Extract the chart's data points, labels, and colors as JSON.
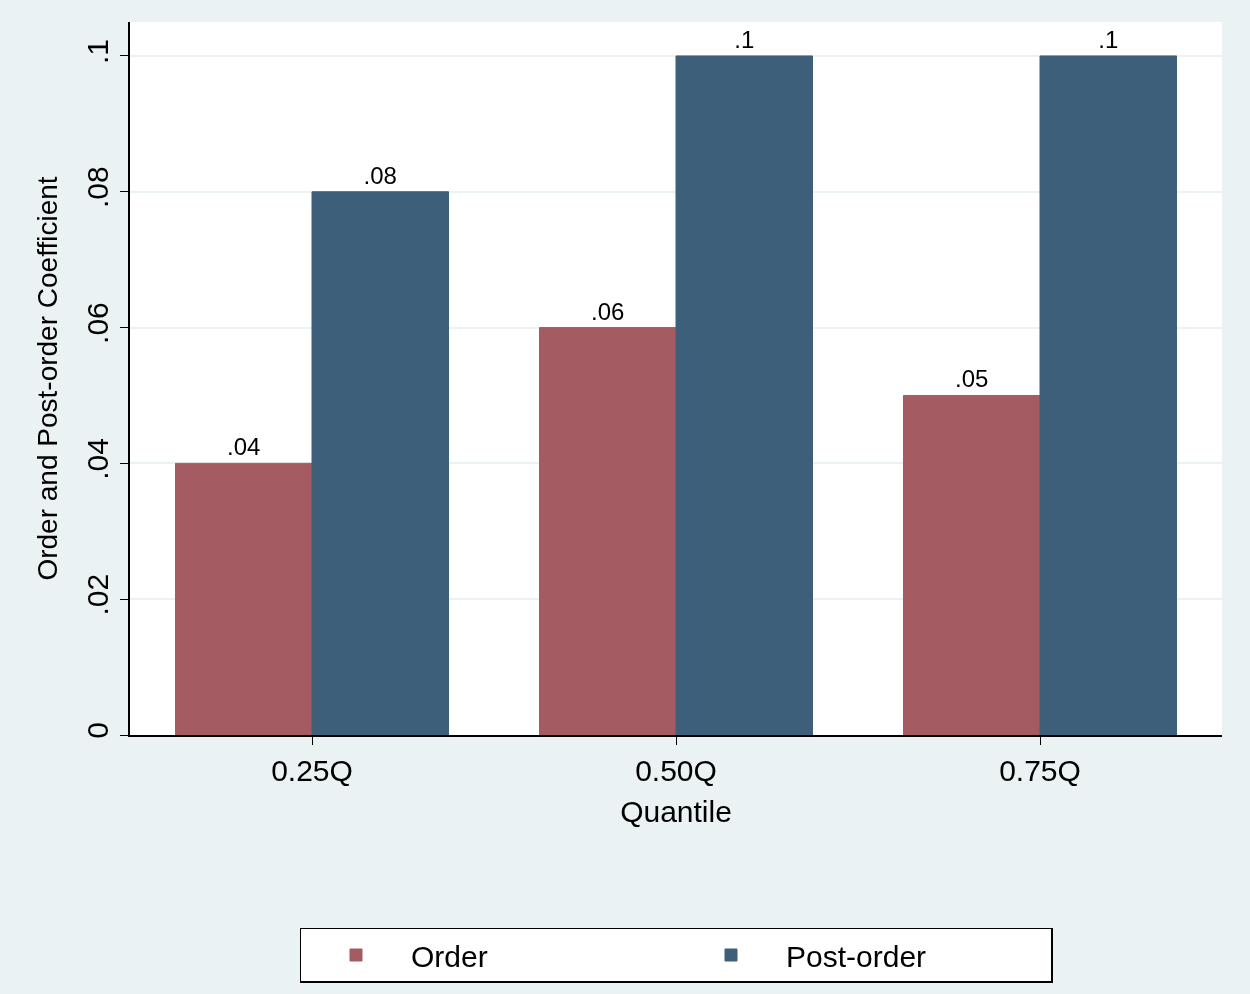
{
  "chart_data": {
    "type": "bar",
    "xlabel": "Quantile",
    "ylabel": "Order and Post-order Coefficient",
    "categories": [
      "0.25Q",
      "0.50Q",
      "0.75Q"
    ],
    "series": [
      {
        "name": "Order",
        "color": "#a45c62",
        "values": [
          0.04,
          0.06,
          0.05
        ],
        "value_labels": [
          ".04",
          ".06",
          ".05"
        ]
      },
      {
        "name": "Post-order",
        "color": "#3e5f7a",
        "values": [
          0.08,
          0.1,
          0.1
        ],
        "value_labels": [
          ".08",
          ".1",
          ".1"
        ]
      }
    ],
    "ylim": [
      0,
      0.105
    ],
    "yticks": [
      {
        "value": 0,
        "label": "0"
      },
      {
        "value": 0.02,
        "label": ".02"
      },
      {
        "value": 0.04,
        "label": ".04"
      },
      {
        "value": 0.06,
        "label": ".06"
      },
      {
        "value": 0.08,
        "label": ".08"
      },
      {
        "value": 0.1,
        "label": ".1"
      }
    ],
    "grid": "y",
    "legend": "bottom"
  }
}
